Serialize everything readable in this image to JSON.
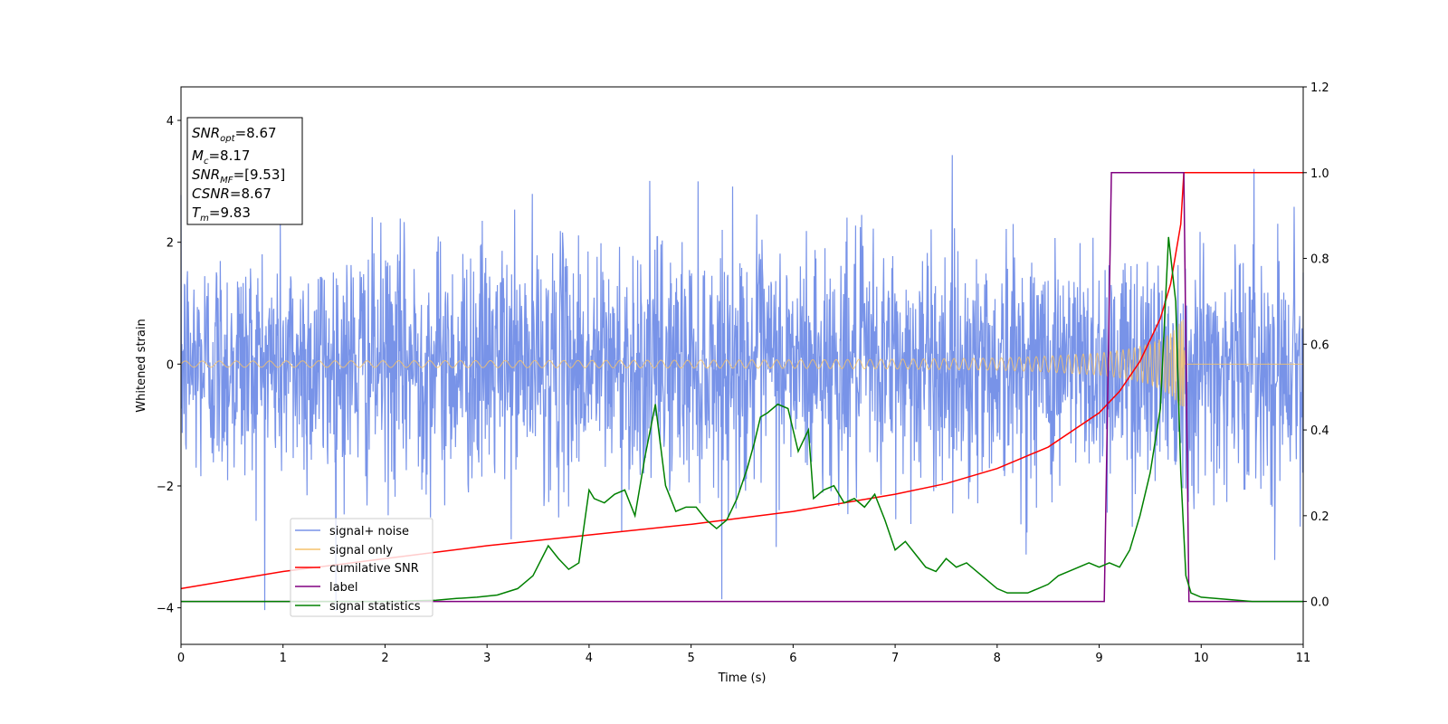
{
  "chart_data": {
    "type": "line",
    "xlabel": "Time (s)",
    "ylabel": "Whitened strain",
    "xlim": [
      0,
      11
    ],
    "ylim_left": [
      -4.6,
      4.55
    ],
    "ylim_right": [
      -0.1,
      1.2
    ],
    "x_ticks": [
      "0",
      "1",
      "2",
      "3",
      "4",
      "5",
      "6",
      "7",
      "8",
      "9",
      "10",
      "11"
    ],
    "y_ticks_left": [
      "4",
      "2",
      "0",
      "−2",
      "−4"
    ],
    "y_ticks_left_values": [
      4,
      2,
      0,
      -2,
      -4
    ],
    "y_ticks_right": [
      "1.2",
      "1.0",
      "0.8",
      "0.6",
      "0.4",
      "0.2",
      "0.0"
    ],
    "y_ticks_right_values": [
      1.2,
      1.0,
      0.8,
      0.6,
      0.4,
      0.2,
      0.0
    ],
    "legend_position": "lower-left",
    "annotation": {
      "snr_opt": "=8.67",
      "mc": "=8.17",
      "snr_mf": "=[9.53]",
      "csnr": "=8.67",
      "tm": "=9.83"
    },
    "series": [
      {
        "name": "signal+ noise",
        "axis": "left",
        "color": "#7893e8",
        "description_values": {
          "amplitude_range": [
            -4.05,
            3.85
          ],
          "typical_std": 1.0
        }
      },
      {
        "name": "signal only",
        "axis": "left",
        "color": "#f5c26b",
        "envelope": {
          "x": [
            0,
            2,
            4,
            6,
            7,
            8,
            8.5,
            9,
            9.3,
            9.5,
            9.7,
            9.83,
            9.84,
            11
          ],
          "amp": [
            0.05,
            0.055,
            0.06,
            0.07,
            0.08,
            0.1,
            0.13,
            0.18,
            0.25,
            0.33,
            0.5,
            0.75,
            0.0,
            0.0
          ]
        }
      },
      {
        "name": "cumilative SNR",
        "axis": "right",
        "color": "#ff0000",
        "x": [
          0,
          1,
          2,
          3,
          4,
          5,
          6,
          7,
          7.5,
          8,
          8.5,
          9,
          9.2,
          9.4,
          9.6,
          9.7,
          9.8,
          9.83,
          10,
          11
        ],
        "y": [
          0.03,
          0.07,
          0.1,
          0.13,
          0.155,
          0.18,
          0.21,
          0.25,
          0.275,
          0.31,
          0.36,
          0.44,
          0.49,
          0.56,
          0.66,
          0.74,
          0.88,
          1.0,
          1.0,
          1.0
        ]
      },
      {
        "name": "label",
        "axis": "right",
        "color": "#800080",
        "x": [
          0,
          9.05,
          9.12,
          9.83,
          9.88,
          11
        ],
        "y": [
          0,
          0,
          1,
          1,
          0,
          0
        ]
      },
      {
        "name": "signal statistics",
        "axis": "right",
        "color": "#008000",
        "x": [
          0,
          0.5,
          1,
          1.5,
          2,
          2.5,
          2.7,
          2.9,
          3.1,
          3.3,
          3.45,
          3.6,
          3.7,
          3.8,
          3.9,
          4.0,
          4.05,
          4.15,
          4.25,
          4.35,
          4.45,
          4.55,
          4.65,
          4.75,
          4.85,
          4.95,
          5.05,
          5.15,
          5.25,
          5.35,
          5.45,
          5.55,
          5.62,
          5.68,
          5.75,
          5.85,
          5.95,
          6.05,
          6.15,
          6.2,
          6.3,
          6.4,
          6.5,
          6.6,
          6.7,
          6.8,
          6.9,
          7.0,
          7.1,
          7.2,
          7.3,
          7.4,
          7.5,
          7.6,
          7.7,
          7.8,
          7.9,
          8.0,
          8.1,
          8.2,
          8.3,
          8.4,
          8.5,
          8.6,
          8.7,
          8.8,
          8.9,
          9.0,
          9.1,
          9.2,
          9.3,
          9.4,
          9.5,
          9.6,
          9.68,
          9.75,
          9.8,
          9.85,
          9.9,
          10.0,
          10.5,
          11
        ],
        "y": [
          0.0,
          0.0,
          0.0,
          0.0,
          0.0,
          0.003,
          0.007,
          0.01,
          0.015,
          0.03,
          0.06,
          0.13,
          0.1,
          0.075,
          0.09,
          0.26,
          0.24,
          0.23,
          0.25,
          0.26,
          0.2,
          0.34,
          0.46,
          0.27,
          0.21,
          0.22,
          0.22,
          0.19,
          0.17,
          0.19,
          0.24,
          0.31,
          0.37,
          0.43,
          0.44,
          0.46,
          0.45,
          0.35,
          0.4,
          0.24,
          0.26,
          0.27,
          0.23,
          0.24,
          0.22,
          0.25,
          0.19,
          0.12,
          0.14,
          0.11,
          0.08,
          0.07,
          0.1,
          0.08,
          0.09,
          0.07,
          0.05,
          0.03,
          0.02,
          0.02,
          0.02,
          0.03,
          0.04,
          0.06,
          0.07,
          0.08,
          0.09,
          0.08,
          0.09,
          0.08,
          0.12,
          0.2,
          0.3,
          0.45,
          0.85,
          0.7,
          0.3,
          0.06,
          0.02,
          0.01,
          0.0,
          0.0
        ]
      }
    ]
  }
}
